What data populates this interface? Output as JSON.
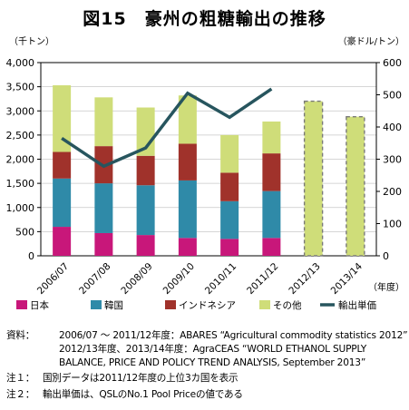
{
  "title": "図15　豪州の粗糖輸出の推移",
  "chart_data": {
    "type": "bar",
    "title": "図15　豪州の粗糖輸出の推移",
    "y_left_label": "（千トン）",
    "y_right_label": "（豪ドル/トン）",
    "x_label": "（年度）",
    "categories": [
      "2006/07",
      "2007/08",
      "2008/09",
      "2009/10",
      "2010/11",
      "2011/12",
      "2012/13",
      "2013/14"
    ],
    "left_ylim": [
      0,
      4000
    ],
    "left_ticks": [
      "0",
      "500",
      "1,000",
      "1,500",
      "2,000",
      "2,500",
      "3,000",
      "3,500",
      "4,000"
    ],
    "right_ylim": [
      0,
      600
    ],
    "right_ticks": [
      "0",
      "100",
      "200",
      "300",
      "400",
      "500",
      "600"
    ],
    "grid": true,
    "legend_position": "bottom",
    "series": [
      {
        "name": "日本",
        "type": "bar",
        "color": "#c8177a",
        "values": [
          600,
          470,
          430,
          370,
          350,
          370,
          null,
          null
        ]
      },
      {
        "name": "韓国",
        "type": "bar",
        "color": "#2f8aa8",
        "values": [
          1000,
          1030,
          1030,
          1190,
          780,
          970,
          null,
          null
        ]
      },
      {
        "name": "インドネシア",
        "type": "bar",
        "color": "#a0322b",
        "values": [
          550,
          770,
          610,
          760,
          590,
          780,
          null,
          null
        ]
      },
      {
        "name": "その他",
        "type": "bar",
        "color": "#cfdd79",
        "values": [
          1380,
          1010,
          1000,
          1000,
          780,
          660,
          3200,
          2880
        ]
      },
      {
        "name": "輸出単価",
        "type": "line",
        "axis": "right",
        "color": "#27555e",
        "values": [
          365,
          278,
          335,
          505,
          430,
          518,
          null,
          null
        ]
      }
    ],
    "total_values": [
      3530,
      3280,
      3070,
      3320,
      2500,
      2780,
      3200,
      2880
    ],
    "forecast_categories": [
      "2012/13",
      "2013/14"
    ]
  },
  "notes": [
    {
      "label": "資料：",
      "text": "2006/07 ～ 2011/12年度：ABARES “Agricultural commodity statistics 2012”"
    },
    {
      "label": "",
      "text": "2012/13年度、2013/14年度：AgraCEAS “WORLD ETHANOL SUPPLY"
    },
    {
      "label": "",
      "text": "BALANCE, PRICE AND POLICY TREND ANALYSIS, September 2013”"
    },
    {
      "label": "注１：",
      "text": "国別データは2011/12年度の上位3カ国を表示"
    },
    {
      "label": "注２：",
      "text": "輸出単価は、QSLのNo.1 Pool Priceの値である"
    }
  ]
}
